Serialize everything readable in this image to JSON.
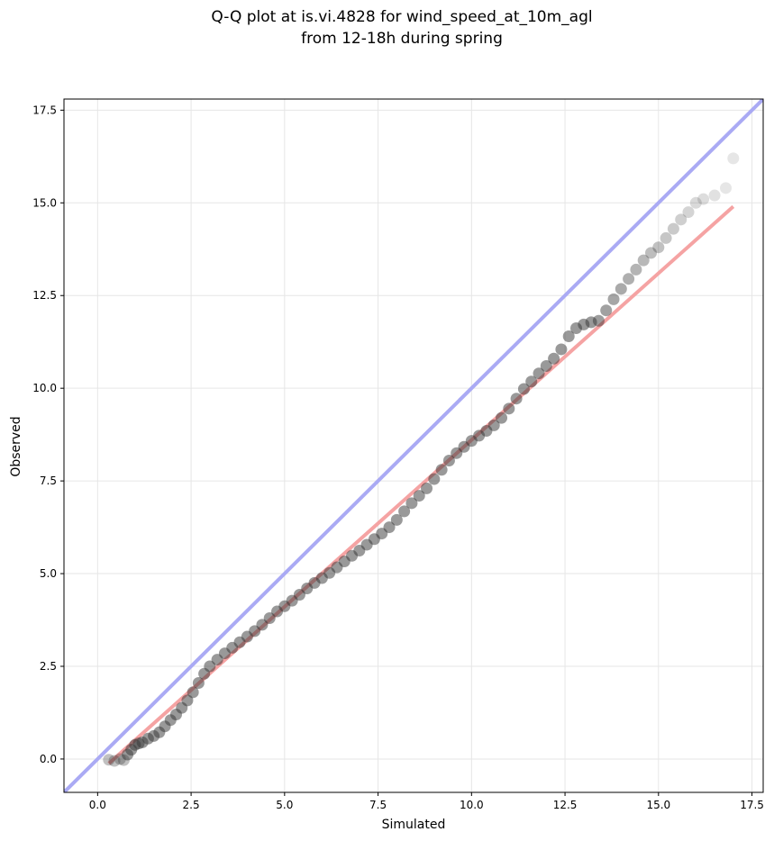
{
  "chart_data": {
    "type": "scatter",
    "title_line1": "Q-Q plot at is.vi.4828 for wind_speed_at_10m_agl",
    "title_line2": "from 12-18h during spring",
    "xlabel": "Simulated",
    "ylabel": "Observed",
    "xlim": [
      -0.9,
      17.8
    ],
    "ylim": [
      -0.9,
      17.8
    ],
    "xticks": [
      0.0,
      2.5,
      5.0,
      7.5,
      10.0,
      12.5,
      15.0,
      17.5
    ],
    "yticks": [
      0.0,
      2.5,
      5.0,
      7.5,
      10.0,
      12.5,
      15.0,
      17.5
    ],
    "xtick_labels": [
      "0.0",
      "2.5",
      "5.0",
      "7.5",
      "10.0",
      "12.5",
      "15.0",
      "17.5"
    ],
    "ytick_labels": [
      "0.0",
      "2.5",
      "5.0",
      "7.5",
      "10.0",
      "12.5",
      "15.0",
      "17.5"
    ],
    "grid": true,
    "reference_line": {
      "color": "#aaaaf4",
      "x": [
        -0.9,
        17.8
      ],
      "y": [
        -0.9,
        17.8
      ]
    },
    "fit_line": {
      "color": "#f5a3a3",
      "x": [
        0.3,
        17.0
      ],
      "y": [
        -0.12,
        14.9
      ]
    },
    "points_color": "#333333",
    "points": [
      [
        0.3,
        -0.02
      ],
      [
        0.45,
        -0.05
      ],
      [
        0.6,
        0.0
      ],
      [
        0.7,
        -0.03
      ],
      [
        0.8,
        0.12
      ],
      [
        0.9,
        0.25
      ],
      [
        1.0,
        0.38
      ],
      [
        1.1,
        0.42
      ],
      [
        1.2,
        0.45
      ],
      [
        1.35,
        0.55
      ],
      [
        1.5,
        0.62
      ],
      [
        1.65,
        0.72
      ],
      [
        1.8,
        0.88
      ],
      [
        1.95,
        1.05
      ],
      [
        2.1,
        1.2
      ],
      [
        2.25,
        1.38
      ],
      [
        2.4,
        1.58
      ],
      [
        2.55,
        1.8
      ],
      [
        2.7,
        2.05
      ],
      [
        2.85,
        2.3
      ],
      [
        3.0,
        2.5
      ],
      [
        3.2,
        2.68
      ],
      [
        3.4,
        2.85
      ],
      [
        3.6,
        3.0
      ],
      [
        3.8,
        3.15
      ],
      [
        4.0,
        3.3
      ],
      [
        4.2,
        3.45
      ],
      [
        4.4,
        3.62
      ],
      [
        4.6,
        3.8
      ],
      [
        4.8,
        3.98
      ],
      [
        5.0,
        4.12
      ],
      [
        5.2,
        4.27
      ],
      [
        5.4,
        4.43
      ],
      [
        5.6,
        4.6
      ],
      [
        5.8,
        4.75
      ],
      [
        6.0,
        4.88
      ],
      [
        6.2,
        5.02
      ],
      [
        6.4,
        5.17
      ],
      [
        6.6,
        5.33
      ],
      [
        6.8,
        5.48
      ],
      [
        7.0,
        5.62
      ],
      [
        7.2,
        5.78
      ],
      [
        7.4,
        5.93
      ],
      [
        7.6,
        6.08
      ],
      [
        7.8,
        6.25
      ],
      [
        8.0,
        6.45
      ],
      [
        8.2,
        6.68
      ],
      [
        8.4,
        6.9
      ],
      [
        8.6,
        7.1
      ],
      [
        8.8,
        7.3
      ],
      [
        9.0,
        7.55
      ],
      [
        9.2,
        7.8
      ],
      [
        9.4,
        8.05
      ],
      [
        9.6,
        8.25
      ],
      [
        9.8,
        8.42
      ],
      [
        10.0,
        8.58
      ],
      [
        10.2,
        8.72
      ],
      [
        10.4,
        8.85
      ],
      [
        10.6,
        9.0
      ],
      [
        10.8,
        9.2
      ],
      [
        11.0,
        9.45
      ],
      [
        11.2,
        9.72
      ],
      [
        11.4,
        9.98
      ],
      [
        11.6,
        10.18
      ],
      [
        11.8,
        10.4
      ],
      [
        12.0,
        10.6
      ],
      [
        12.2,
        10.8
      ],
      [
        12.4,
        11.05
      ],
      [
        12.6,
        11.4
      ],
      [
        12.8,
        11.62
      ],
      [
        13.0,
        11.72
      ],
      [
        13.2,
        11.78
      ],
      [
        13.4,
        11.82
      ],
      [
        13.6,
        12.1
      ],
      [
        13.8,
        12.4
      ],
      [
        14.0,
        12.68
      ],
      [
        14.2,
        12.95
      ],
      [
        14.4,
        13.2
      ],
      [
        14.6,
        13.45
      ],
      [
        14.8,
        13.65
      ],
      [
        15.0,
        13.8
      ],
      [
        15.2,
        14.05
      ],
      [
        15.4,
        14.3
      ],
      [
        15.6,
        14.55
      ],
      [
        15.8,
        14.75
      ],
      [
        16.0,
        15.0
      ],
      [
        16.2,
        15.1
      ],
      [
        16.5,
        15.2
      ],
      [
        16.8,
        15.4
      ],
      [
        17.0,
        16.2
      ]
    ]
  }
}
